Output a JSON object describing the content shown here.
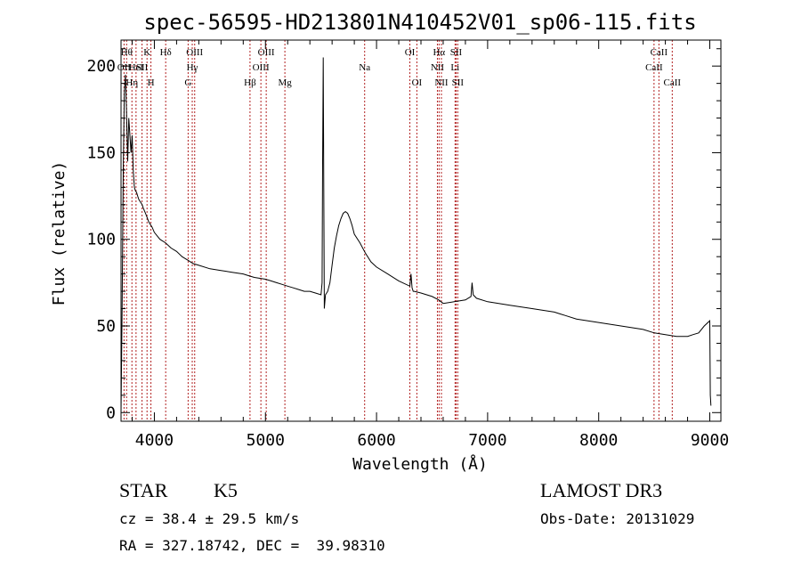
{
  "title": "spec-56595-HD213801N410452V01_sp06-115.fits",
  "chart_data": {
    "type": "line",
    "xlabel": "Wavelength (Å)",
    "ylabel": "Flux (relative)",
    "xlim": [
      3700,
      9100
    ],
    "ylim": [
      -5,
      215
    ],
    "xticks": [
      4000,
      5000,
      6000,
      7000,
      8000,
      9000
    ],
    "yticks": [
      0,
      50,
      100,
      150,
      200
    ],
    "grid": false,
    "series": [
      {
        "x": [
          3700,
          3710,
          3720,
          3730,
          3740,
          3750,
          3760,
          3770,
          3780,
          3790,
          3800,
          3810,
          3820,
          3830,
          3840,
          3850,
          3860,
          3870,
          3880,
          3890,
          3900,
          3920,
          3950,
          3980,
          4000,
          4050,
          4100,
          4150,
          4200,
          4250,
          4300,
          4350,
          4400,
          4500,
          4600,
          4700,
          4800,
          4850,
          4900,
          5000,
          5050,
          5100,
          5150,
          5200,
          5250,
          5300,
          5350,
          5400,
          5450,
          5500,
          5510,
          5515,
          5520,
          5525,
          5530,
          5540,
          5560,
          5580,
          5600,
          5620,
          5640,
          5660,
          5680,
          5700,
          5720,
          5740,
          5760,
          5780,
          5800,
          5850,
          5900,
          5950,
          6000,
          6100,
          6200,
          6300,
          6310,
          6320,
          6330,
          6340,
          6400,
          6500,
          6560,
          6600,
          6700,
          6800,
          6850,
          6860,
          6870,
          6900,
          7000,
          7200,
          7400,
          7600,
          7650,
          7700,
          7800,
          8000,
          8200,
          8400,
          8500,
          8600,
          8700,
          8800,
          8850,
          8900,
          8950,
          9000,
          9005,
          9010
        ],
        "y": [
          0,
          60,
          140,
          185,
          195,
          172,
          145,
          170,
          160,
          150,
          160,
          140,
          130,
          128,
          127,
          125,
          123,
          122,
          121,
          120,
          118,
          115,
          110,
          107,
          104,
          100,
          98,
          95,
          93,
          90,
          88,
          86,
          85,
          83,
          82,
          81,
          80,
          79,
          78,
          77,
          76,
          75,
          74,
          73,
          72,
          71,
          70,
          70,
          69,
          68,
          75,
          145,
          205,
          130,
          60,
          68,
          70,
          75,
          85,
          95,
          102,
          108,
          112,
          115,
          116,
          115,
          112,
          108,
          103,
          98,
          92,
          87,
          84,
          80,
          76,
          73,
          80,
          72,
          70,
          70,
          69,
          67,
          65,
          63,
          64,
          65,
          67,
          75,
          68,
          66,
          64,
          62,
          60,
          58,
          57,
          56,
          54,
          52,
          50,
          48,
          46,
          45,
          44,
          44,
          45,
          46,
          50,
          53,
          10,
          4
        ]
      }
    ],
    "lines": [
      {
        "x": 3727,
        "label": "OII",
        "row": 1
      },
      {
        "x": 3750,
        "label": "Hθ",
        "row": 0
      },
      {
        "x": 3798,
        "label": "Hη",
        "row": 2
      },
      {
        "x": 3835,
        "label": "HeI",
        "row": 1
      },
      {
        "x": 3889,
        "label": "SII",
        "row": 1
      },
      {
        "x": 3934,
        "label": "K",
        "row": 0
      },
      {
        "x": 3969,
        "label": "H",
        "row": 2
      },
      {
        "x": 4102,
        "label": "Hδ",
        "row": 0
      },
      {
        "x": 4304,
        "label": "G",
        "row": 2
      },
      {
        "x": 4341,
        "label": "Hγ",
        "row": 1
      },
      {
        "x": 4363,
        "label": "OIII",
        "row": 0
      },
      {
        "x": 4861,
        "label": "Hβ",
        "row": 2
      },
      {
        "x": 4959,
        "label": "OIII",
        "row": 1
      },
      {
        "x": 5007,
        "label": "OIII",
        "row": 0
      },
      {
        "x": 5175,
        "label": "Mg",
        "row": 2
      },
      {
        "x": 5893,
        "label": "Na",
        "row": 1
      },
      {
        "x": 6300,
        "label": "OI",
        "row": 0
      },
      {
        "x": 6363,
        "label": "OI",
        "row": 2
      },
      {
        "x": 6548,
        "label": "NII",
        "row": 1
      },
      {
        "x": 6563,
        "label": "Hα",
        "row": 0
      },
      {
        "x": 6584,
        "label": "NII",
        "row": 2
      },
      {
        "x": 6707,
        "label": "Li",
        "row": 1
      },
      {
        "x": 6716,
        "label": "SII",
        "row": 0
      },
      {
        "x": 6731,
        "label": "SII",
        "row": 2
      },
      {
        "x": 8498,
        "label": "CaII",
        "row": 1
      },
      {
        "x": 8542,
        "label": "CaII",
        "row": 0
      },
      {
        "x": 8662,
        "label": "CaII",
        "row": 2
      }
    ],
    "line_color": "#b22222",
    "spectrum_color": "#000000"
  },
  "info": {
    "class": "STAR",
    "subclass": "K5",
    "survey": "LAMOST DR3",
    "cz": "cz = 38.4 ± 29.5 km/s",
    "obs_date": "Obs-Date: 20131029",
    "coords": "RA = 327.18742, DEC =  39.98310"
  }
}
